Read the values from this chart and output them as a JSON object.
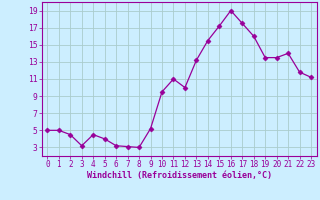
{
  "x": [
    0,
    1,
    2,
    3,
    4,
    5,
    6,
    7,
    8,
    9,
    10,
    11,
    12,
    13,
    14,
    15,
    16,
    17,
    18,
    19,
    20,
    21,
    22,
    23
  ],
  "y": [
    5,
    5,
    4.5,
    3.2,
    4.5,
    4,
    3.2,
    3.1,
    3.0,
    5.2,
    9.5,
    11.0,
    10.0,
    13.2,
    15.5,
    17.2,
    19.0,
    17.5,
    16.0,
    13.5,
    13.5,
    14.0,
    11.8,
    11.2
  ],
  "line_color": "#990099",
  "marker": "D",
  "marker_size": 2.5,
  "bg_color": "#cceeff",
  "grid_color": "#aacccc",
  "xlabel": "Windchill (Refroidissement éolien,°C)",
  "xlabel_color": "#990099",
  "tick_color": "#990099",
  "spine_color": "#990099",
  "ylim": [
    2,
    20
  ],
  "xlim": [
    -0.5,
    23.5
  ],
  "yticks": [
    3,
    5,
    7,
    9,
    11,
    13,
    15,
    17,
    19
  ],
  "xticks": [
    0,
    1,
    2,
    3,
    4,
    5,
    6,
    7,
    8,
    9,
    10,
    11,
    12,
    13,
    14,
    15,
    16,
    17,
    18,
    19,
    20,
    21,
    22,
    23
  ],
  "xlabel_fontsize": 6.0,
  "tick_fontsize": 5.5,
  "linewidth": 0.9
}
